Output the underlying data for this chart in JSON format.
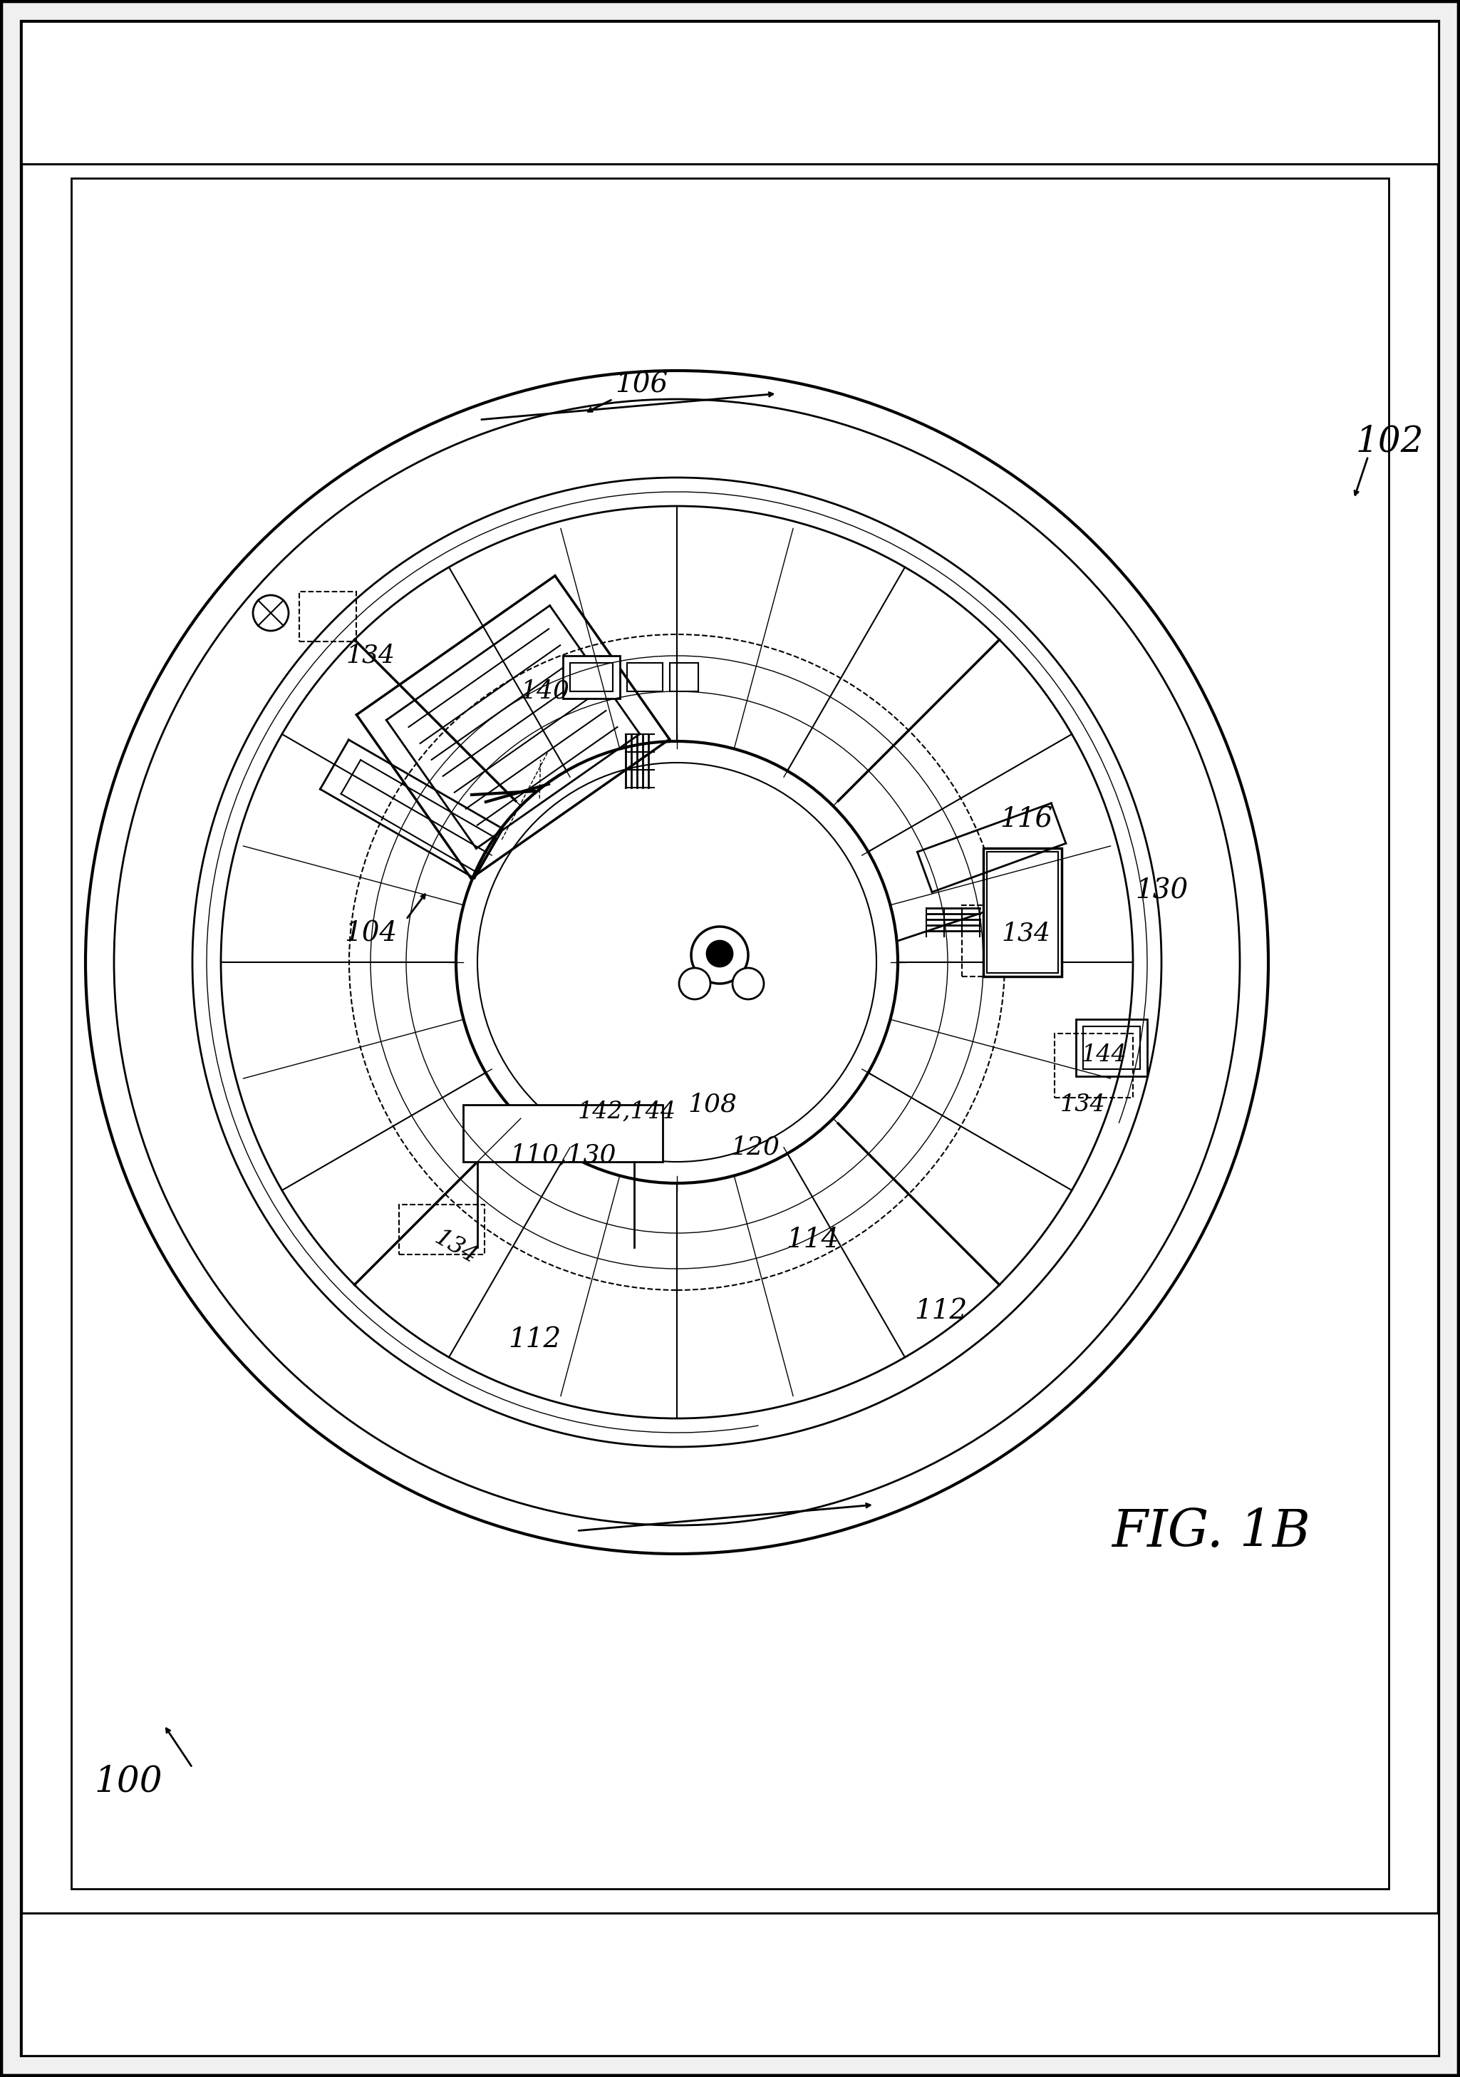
{
  "bg_color": "#ffffff",
  "line_color": "#000000",
  "fig_width": 20.49,
  "fig_height": 29.14,
  "title": "FIG. 1B",
  "label_100": "100",
  "label_102": "102",
  "label_104": "104",
  "label_106": "106",
  "label_108": "108",
  "label_110": "110,130",
  "label_112": "112",
  "label_114": "114",
  "label_116": "116",
  "label_120": "120",
  "label_130": "130",
  "label_134": "134",
  "label_140": "140",
  "label_142": "142,144",
  "label_144": "144"
}
